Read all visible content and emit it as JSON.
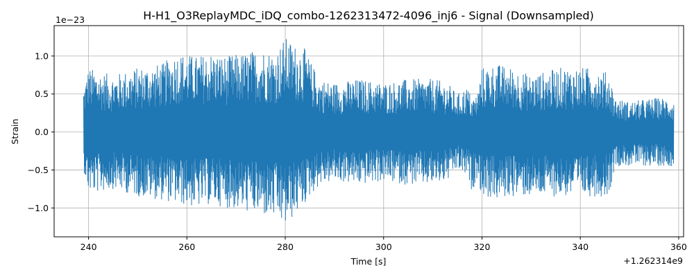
{
  "chart_data": {
    "type": "line",
    "title": "H-H1_O3ReplayMDC_iDQ_combo-1262313472-4096_inj6 - Signal (Downsampled)",
    "xlabel": "Time [s]",
    "ylabel": "Strain",
    "x_offset_label": "+1.262314e9",
    "y_scale_label": "1e−23",
    "xlim": [
      233,
      361
    ],
    "ylim": [
      -1.38,
      1.4
    ],
    "x_ticks": [
      240,
      260,
      280,
      300,
      320,
      340,
      360
    ],
    "y_ticks": [
      -1.0,
      -0.5,
      0.0,
      0.5,
      1.0
    ],
    "x_tick_labels": [
      "240",
      "260",
      "280",
      "300",
      "320",
      "340",
      "360"
    ],
    "y_tick_labels": [
      "−1.0",
      "−0.5",
      "0.0",
      "0.5",
      "1.0"
    ],
    "grid": true,
    "series": [
      {
        "color": "#1f77b4",
        "x_range": [
          239,
          359
        ],
        "envelope_upper": [
          [
            239,
            0.6
          ],
          [
            240,
            0.85
          ],
          [
            242,
            0.8
          ],
          [
            245,
            0.75
          ],
          [
            250,
            0.85
          ],
          [
            255,
            0.9
          ],
          [
            258,
            1.05
          ],
          [
            262,
            1.0
          ],
          [
            265,
            1.05
          ],
          [
            268,
            1.0
          ],
          [
            272,
            1.05
          ],
          [
            275,
            1.1
          ],
          [
            278,
            1.05
          ],
          [
            280,
            1.25
          ],
          [
            282,
            1.15
          ],
          [
            284,
            1.1
          ],
          [
            285,
            0.95
          ],
          [
            287,
            0.7
          ],
          [
            290,
            0.65
          ],
          [
            295,
            0.7
          ],
          [
            300,
            0.65
          ],
          [
            305,
            0.7
          ],
          [
            310,
            0.7
          ],
          [
            313,
            0.65
          ],
          [
            315,
            0.5
          ],
          [
            317,
            0.6
          ],
          [
            318,
            0.45
          ],
          [
            319,
            0.5
          ],
          [
            320,
            0.85
          ],
          [
            323,
            0.9
          ],
          [
            326,
            0.85
          ],
          [
            330,
            0.75
          ],
          [
            333,
            0.8
          ],
          [
            336,
            0.85
          ],
          [
            340,
            0.85
          ],
          [
            343,
            0.85
          ],
          [
            345,
            0.8
          ],
          [
            346,
            0.75
          ],
          [
            347,
            0.45
          ],
          [
            350,
            0.4
          ],
          [
            355,
            0.45
          ],
          [
            358,
            0.45
          ],
          [
            359,
            0.4
          ]
        ],
        "envelope_lower": [
          [
            239,
            -0.5
          ],
          [
            240,
            -0.8
          ],
          [
            242,
            -0.8
          ],
          [
            245,
            -0.75
          ],
          [
            250,
            -0.85
          ],
          [
            255,
            -0.9
          ],
          [
            258,
            -0.95
          ],
          [
            262,
            -1.0
          ],
          [
            265,
            -0.95
          ],
          [
            268,
            -1.0
          ],
          [
            272,
            -1.05
          ],
          [
            275,
            -1.1
          ],
          [
            278,
            -1.15
          ],
          [
            280,
            -1.25
          ],
          [
            282,
            -1.1
          ],
          [
            284,
            -0.95
          ],
          [
            285,
            -0.85
          ],
          [
            287,
            -0.7
          ],
          [
            290,
            -0.65
          ],
          [
            295,
            -0.7
          ],
          [
            300,
            -0.65
          ],
          [
            305,
            -0.7
          ],
          [
            310,
            -0.7
          ],
          [
            313,
            -0.65
          ],
          [
            315,
            -0.5
          ],
          [
            317,
            -0.6
          ],
          [
            318,
            -0.8
          ],
          [
            319,
            -0.6
          ],
          [
            320,
            -0.85
          ],
          [
            323,
            -0.9
          ],
          [
            326,
            -0.85
          ],
          [
            330,
            -0.85
          ],
          [
            333,
            -0.85
          ],
          [
            336,
            -0.85
          ],
          [
            340,
            -0.85
          ],
          [
            343,
            -0.85
          ],
          [
            345,
            -0.85
          ],
          [
            346,
            -0.8
          ],
          [
            347,
            -0.45
          ],
          [
            350,
            -0.45
          ],
          [
            355,
            -0.45
          ],
          [
            358,
            -0.45
          ],
          [
            359,
            -0.45
          ]
        ]
      }
    ]
  }
}
